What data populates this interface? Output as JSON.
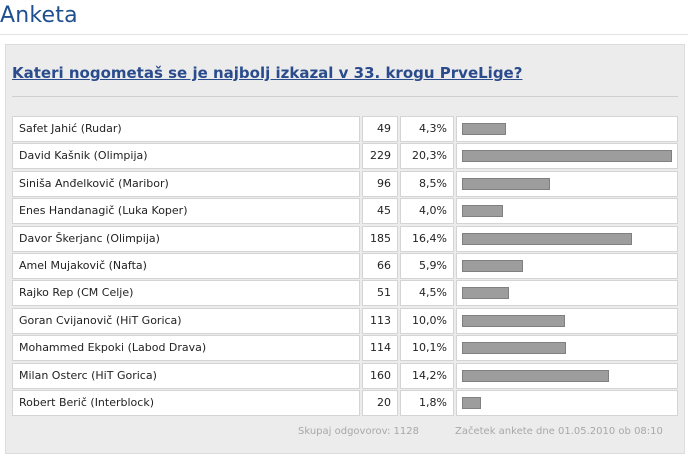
{
  "page": {
    "title": "Anketa"
  },
  "poll": {
    "question": "Kateri nogometaš se je najbolj izkazal v 33. krogu PrveLige?",
    "rows": [
      {
        "name": "Safet Jahić (Rudar)",
        "votes": "49",
        "percent": "4,3%",
        "share": 4.3
      },
      {
        "name": "David Kašnik (Olimpija)",
        "votes": "229",
        "percent": "20,3%",
        "share": 20.3
      },
      {
        "name": "Siniša Anđelkovič (Maribor)",
        "votes": "96",
        "percent": "8,5%",
        "share": 8.5
      },
      {
        "name": "Enes Handanagič (Luka Koper)",
        "votes": "45",
        "percent": "4,0%",
        "share": 4.0
      },
      {
        "name": "Davor Škerjanc (Olimpija)",
        "votes": "185",
        "percent": "16,4%",
        "share": 16.4
      },
      {
        "name": "Amel Mujakovič (Nafta)",
        "votes": "66",
        "percent": "5,9%",
        "share": 5.9
      },
      {
        "name": "Rajko Rep (CM Celje)",
        "votes": "51",
        "percent": "4,5%",
        "share": 4.5
      },
      {
        "name": "Goran Cvijanovič (HiT Gorica)",
        "votes": "113",
        "percent": "10,0%",
        "share": 10.0
      },
      {
        "name": "Mohammed Ekpoki (Labod Drava)",
        "votes": "114",
        "percent": "10,1%",
        "share": 10.1
      },
      {
        "name": "Milan Osterc (HiT Gorica)",
        "votes": "160",
        "percent": "14,2%",
        "share": 14.2
      },
      {
        "name": "Robert Berič (Interblock)",
        "votes": "20",
        "percent": "1,8%",
        "share": 1.8
      }
    ],
    "footer": {
      "total": "Skupaj odgovorov: 1128",
      "started": "Začetek ankete dne 01.05.2010 ob 08:10"
    },
    "colors": {
      "bar": "#9d9d9d",
      "question": "#2a4b8c",
      "title": "#1f4f8f"
    }
  }
}
